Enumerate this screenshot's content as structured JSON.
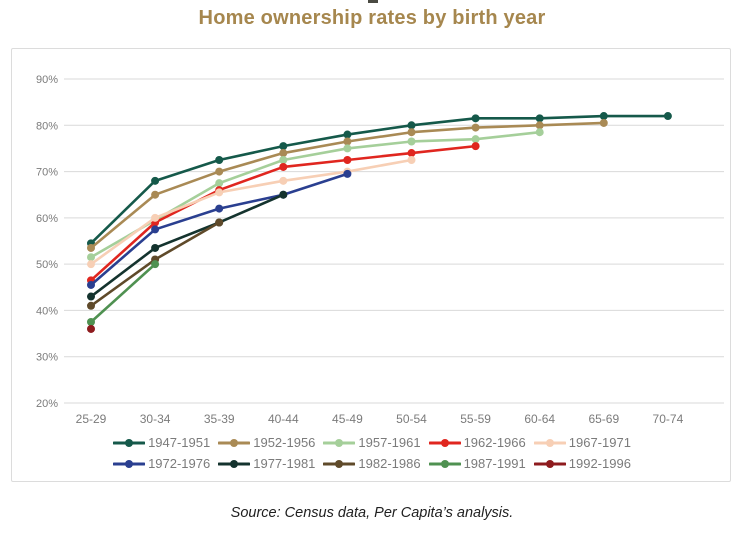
{
  "title": "Home ownership rates by birth year",
  "source": "Source: Census data, Per Capita’s analysis.",
  "colors": {
    "title_text": "#a6874e",
    "axis_text": "#7b7b7b",
    "gridline": "#d9d9d9",
    "legend_text": "#7b7b7b",
    "source_text": "#1f1f1f",
    "card_border": "#dcdcdc"
  },
  "chart_data": {
    "type": "line",
    "title": "Home ownership rates by birth year",
    "xlabel": "",
    "ylabel": "",
    "categories": [
      "25-29",
      "30-34",
      "35-39",
      "40-44",
      "45-49",
      "50-54",
      "55-59",
      "60-64",
      "65-69",
      "70-74"
    ],
    "y_tick_labels": [
      "20%",
      "30%",
      "40%",
      "50%",
      "60%",
      "70%",
      "80%",
      "90%"
    ],
    "ylim": [
      20,
      90
    ],
    "y_tick_step": 10,
    "grid": "horizontal",
    "legend_position": "bottom",
    "legend_rows": 2,
    "marker": "circle",
    "series": [
      {
        "name": "1947-1951",
        "color": "#15594a",
        "values": [
          54.5,
          68,
          72.5,
          75.5,
          78,
          80,
          81.5,
          81.5,
          82,
          82
        ]
      },
      {
        "name": "1952-1956",
        "color": "#a98a55",
        "values": [
          53.5,
          65,
          70,
          74,
          76.5,
          78.5,
          79.5,
          80,
          80.5,
          null
        ]
      },
      {
        "name": "1957-1961",
        "color": "#a5cf9a",
        "values": [
          51.5,
          59.5,
          67.5,
          72.5,
          75,
          76.5,
          77,
          78.5,
          null,
          null
        ]
      },
      {
        "name": "1962-1966",
        "color": "#e0261f",
        "values": [
          46.5,
          59,
          66,
          71,
          72.5,
          74,
          75.5,
          null,
          null,
          null
        ]
      },
      {
        "name": "1967-1971",
        "color": "#f7cfb5",
        "values": [
          50,
          60,
          65.5,
          68,
          70,
          72.5,
          null,
          null,
          null,
          null
        ]
      },
      {
        "name": "1972-1976",
        "color": "#2a3f90",
        "values": [
          45.5,
          57.5,
          62,
          65,
          69.5,
          null,
          null,
          null,
          null,
          null
        ]
      },
      {
        "name": "1977-1981",
        "color": "#14332e",
        "values": [
          43,
          53.5,
          59,
          65,
          null,
          null,
          null,
          null,
          null,
          null
        ]
      },
      {
        "name": "1982-1986",
        "color": "#5f4a2a",
        "values": [
          41,
          51,
          59,
          null,
          null,
          null,
          null,
          null,
          null,
          null
        ]
      },
      {
        "name": "1987-1991",
        "color": "#4f9151",
        "values": [
          37.5,
          50,
          null,
          null,
          null,
          null,
          null,
          null,
          null,
          null
        ]
      },
      {
        "name": "1992-1996",
        "color": "#8e1b1e",
        "values": [
          36,
          null,
          null,
          null,
          null,
          null,
          null,
          null,
          null,
          null
        ]
      }
    ]
  }
}
